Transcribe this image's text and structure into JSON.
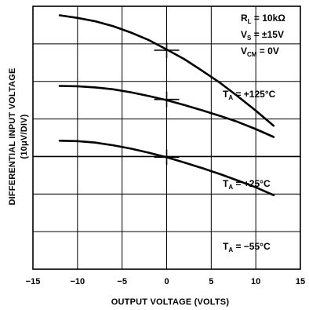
{
  "chart_data": {
    "type": "line",
    "xlabel": "OUTPUT VOLTAGE (VOLTS)",
    "ylabel_line1": "DIFFERENTIAL INPUT VOLTAGE",
    "ylabel_line2": "(10μV/DIV)",
    "xlim": [
      -15,
      15
    ],
    "x_ticks": [
      -15,
      -10,
      -5,
      0,
      5,
      10,
      15
    ],
    "x_tick_labels": [
      "−15",
      "−10",
      "−5",
      "0",
      "5",
      "10",
      "15"
    ],
    "y_divisions": 7,
    "grid": true,
    "conditions": [
      {
        "main": "R",
        "sub": "L",
        "rest": " = 10kΩ"
      },
      {
        "main": "V",
        "sub": "S",
        "rest": " = ±15V"
      },
      {
        "main": "V",
        "sub": "CM",
        "rest": " = 0V"
      }
    ],
    "series": [
      {
        "name": "T_A = +125°C",
        "label": {
          "main": "T",
          "sub": "A",
          "rest": " = +125°C"
        },
        "x": [
          -12,
          -10,
          -8,
          -6,
          -4,
          -2,
          0,
          2,
          4,
          6,
          8,
          10,
          12
        ],
        "y": [
          6.76,
          6.69,
          6.6,
          6.47,
          6.3,
          6.1,
          5.85,
          5.59,
          5.28,
          4.96,
          4.6,
          4.22,
          3.82
        ]
      },
      {
        "name": "T_A = +25°C",
        "label": {
          "main": "T",
          "sub": "A",
          "rest": " = +25°C"
        },
        "x": [
          -12,
          -10,
          -8,
          -6,
          -4,
          -2,
          0,
          2,
          4,
          6,
          8,
          10,
          12
        ],
        "y": [
          4.88,
          4.87,
          4.84,
          4.79,
          4.71,
          4.61,
          4.5,
          4.37,
          4.23,
          4.08,
          3.92,
          3.73,
          3.52
        ]
      },
      {
        "name": "T_A = −55°C",
        "label": {
          "main": "T",
          "sub": "A",
          "rest": " = −55°C"
        },
        "x": [
          -12,
          -10,
          -8,
          -6,
          -4,
          -2,
          0,
          2,
          4,
          6,
          8,
          10,
          12
        ],
        "y": [
          3.42,
          3.41,
          3.37,
          3.3,
          3.21,
          3.1,
          2.98,
          2.84,
          2.69,
          2.53,
          2.36,
          2.18,
          1.97
        ]
      }
    ],
    "zero_markers": [
      {
        "series": 0,
        "x": 0,
        "y": 5.83
      },
      {
        "series": 1,
        "x": 0,
        "y": 4.52
      },
      {
        "series": 2,
        "x": 0,
        "y": 2.98
      }
    ]
  }
}
